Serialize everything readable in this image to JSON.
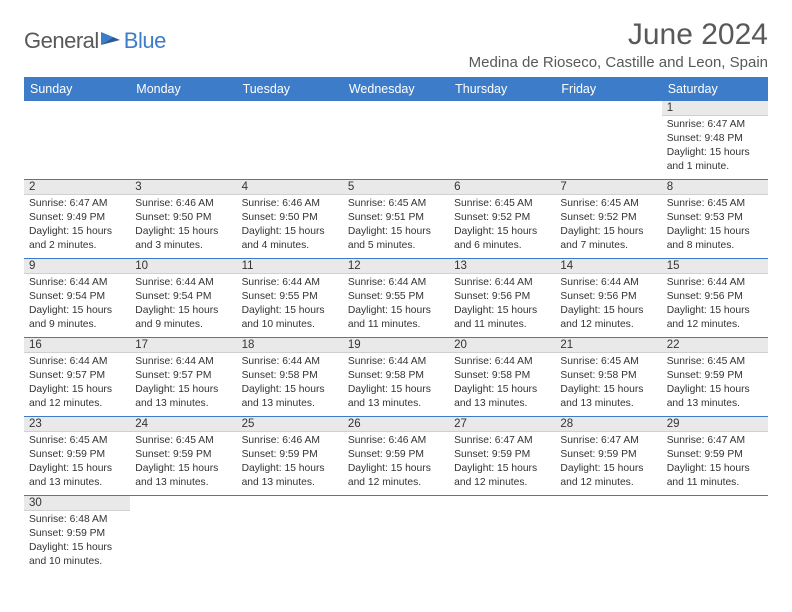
{
  "logo": {
    "part1": "General",
    "part2": "Blue"
  },
  "title": "June 2024",
  "location": "Medina de Rioseco, Castille and Leon, Spain",
  "columns": [
    "Sunday",
    "Monday",
    "Tuesday",
    "Wednesday",
    "Thursday",
    "Friday",
    "Saturday"
  ],
  "colors": {
    "header_bg": "#3d7cc9",
    "header_text": "#ffffff",
    "daynum_bg": "#e9e9e9",
    "border": "#3d7cc9",
    "title_color": "#58595b",
    "logo_gray": "#58595b",
    "logo_blue": "#3d7cc9"
  },
  "weeks": [
    [
      null,
      null,
      null,
      null,
      null,
      null,
      {
        "n": "1",
        "sunrise": "6:47 AM",
        "sunset": "9:48 PM",
        "daylight": "15 hours and 1 minute."
      }
    ],
    [
      {
        "n": "2",
        "sunrise": "6:47 AM",
        "sunset": "9:49 PM",
        "daylight": "15 hours and 2 minutes."
      },
      {
        "n": "3",
        "sunrise": "6:46 AM",
        "sunset": "9:50 PM",
        "daylight": "15 hours and 3 minutes."
      },
      {
        "n": "4",
        "sunrise": "6:46 AM",
        "sunset": "9:50 PM",
        "daylight": "15 hours and 4 minutes."
      },
      {
        "n": "5",
        "sunrise": "6:45 AM",
        "sunset": "9:51 PM",
        "daylight": "15 hours and 5 minutes."
      },
      {
        "n": "6",
        "sunrise": "6:45 AM",
        "sunset": "9:52 PM",
        "daylight": "15 hours and 6 minutes."
      },
      {
        "n": "7",
        "sunrise": "6:45 AM",
        "sunset": "9:52 PM",
        "daylight": "15 hours and 7 minutes."
      },
      {
        "n": "8",
        "sunrise": "6:45 AM",
        "sunset": "9:53 PM",
        "daylight": "15 hours and 8 minutes."
      }
    ],
    [
      {
        "n": "9",
        "sunrise": "6:44 AM",
        "sunset": "9:54 PM",
        "daylight": "15 hours and 9 minutes."
      },
      {
        "n": "10",
        "sunrise": "6:44 AM",
        "sunset": "9:54 PM",
        "daylight": "15 hours and 9 minutes."
      },
      {
        "n": "11",
        "sunrise": "6:44 AM",
        "sunset": "9:55 PM",
        "daylight": "15 hours and 10 minutes."
      },
      {
        "n": "12",
        "sunrise": "6:44 AM",
        "sunset": "9:55 PM",
        "daylight": "15 hours and 11 minutes."
      },
      {
        "n": "13",
        "sunrise": "6:44 AM",
        "sunset": "9:56 PM",
        "daylight": "15 hours and 11 minutes."
      },
      {
        "n": "14",
        "sunrise": "6:44 AM",
        "sunset": "9:56 PM",
        "daylight": "15 hours and 12 minutes."
      },
      {
        "n": "15",
        "sunrise": "6:44 AM",
        "sunset": "9:56 PM",
        "daylight": "15 hours and 12 minutes."
      }
    ],
    [
      {
        "n": "16",
        "sunrise": "6:44 AM",
        "sunset": "9:57 PM",
        "daylight": "15 hours and 12 minutes."
      },
      {
        "n": "17",
        "sunrise": "6:44 AM",
        "sunset": "9:57 PM",
        "daylight": "15 hours and 13 minutes."
      },
      {
        "n": "18",
        "sunrise": "6:44 AM",
        "sunset": "9:58 PM",
        "daylight": "15 hours and 13 minutes."
      },
      {
        "n": "19",
        "sunrise": "6:44 AM",
        "sunset": "9:58 PM",
        "daylight": "15 hours and 13 minutes."
      },
      {
        "n": "20",
        "sunrise": "6:44 AM",
        "sunset": "9:58 PM",
        "daylight": "15 hours and 13 minutes."
      },
      {
        "n": "21",
        "sunrise": "6:45 AM",
        "sunset": "9:58 PM",
        "daylight": "15 hours and 13 minutes."
      },
      {
        "n": "22",
        "sunrise": "6:45 AM",
        "sunset": "9:59 PM",
        "daylight": "15 hours and 13 minutes."
      }
    ],
    [
      {
        "n": "23",
        "sunrise": "6:45 AM",
        "sunset": "9:59 PM",
        "daylight": "15 hours and 13 minutes."
      },
      {
        "n": "24",
        "sunrise": "6:45 AM",
        "sunset": "9:59 PM",
        "daylight": "15 hours and 13 minutes."
      },
      {
        "n": "25",
        "sunrise": "6:46 AM",
        "sunset": "9:59 PM",
        "daylight": "15 hours and 13 minutes."
      },
      {
        "n": "26",
        "sunrise": "6:46 AM",
        "sunset": "9:59 PM",
        "daylight": "15 hours and 12 minutes."
      },
      {
        "n": "27",
        "sunrise": "6:47 AM",
        "sunset": "9:59 PM",
        "daylight": "15 hours and 12 minutes."
      },
      {
        "n": "28",
        "sunrise": "6:47 AM",
        "sunset": "9:59 PM",
        "daylight": "15 hours and 12 minutes."
      },
      {
        "n": "29",
        "sunrise": "6:47 AM",
        "sunset": "9:59 PM",
        "daylight": "15 hours and 11 minutes."
      }
    ],
    [
      {
        "n": "30",
        "sunrise": "6:48 AM",
        "sunset": "9:59 PM",
        "daylight": "15 hours and 10 minutes."
      },
      null,
      null,
      null,
      null,
      null,
      null
    ]
  ],
  "labels": {
    "sunrise": "Sunrise:",
    "sunset": "Sunset:",
    "daylight": "Daylight:"
  }
}
